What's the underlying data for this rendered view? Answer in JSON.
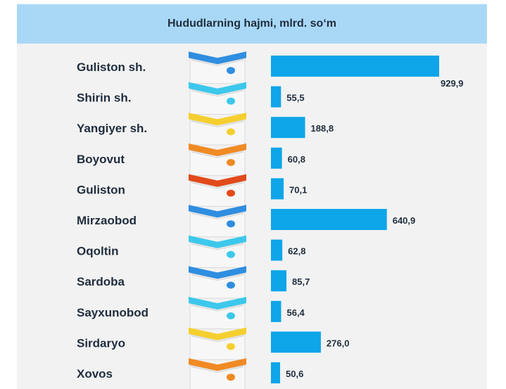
{
  "chart_data": {
    "type": "bar",
    "orientation": "horizontal",
    "title": "Hududlarning hajmi, mlrd. so‘m",
    "categories": [
      "Guliston sh.",
      "Shirin sh.",
      "Yangiyer sh.",
      "Boyovut",
      "Guliston",
      "Mirzaobod",
      "Oqoltin",
      "Sardoba",
      "Sayxunobod",
      "Sirdaryo",
      "Xovos"
    ],
    "values": [
      929.9,
      55.5,
      188.8,
      60.8,
      70.1,
      640.9,
      62.8,
      85.7,
      56.4,
      276.0,
      50.6
    ],
    "value_labels": [
      "929,9",
      "55,5",
      "188,8",
      "60,8",
      "70,1",
      "640,9",
      "62,8",
      "85,7",
      "56,4",
      "276,0",
      "50,6"
    ],
    "xlim": [
      0,
      929.9
    ],
    "grid": false,
    "legend": "none",
    "bar_color": "#0ea5e9",
    "ribbon_colors": [
      "#2f8ee0",
      "#3cc8ec",
      "#f5cf2f",
      "#f08a24",
      "#e24a1a",
      "#2f8ee0",
      "#3cc8ec",
      "#2f8ee0",
      "#3cc8ec",
      "#f5cf2f",
      "#f08a24"
    ]
  }
}
